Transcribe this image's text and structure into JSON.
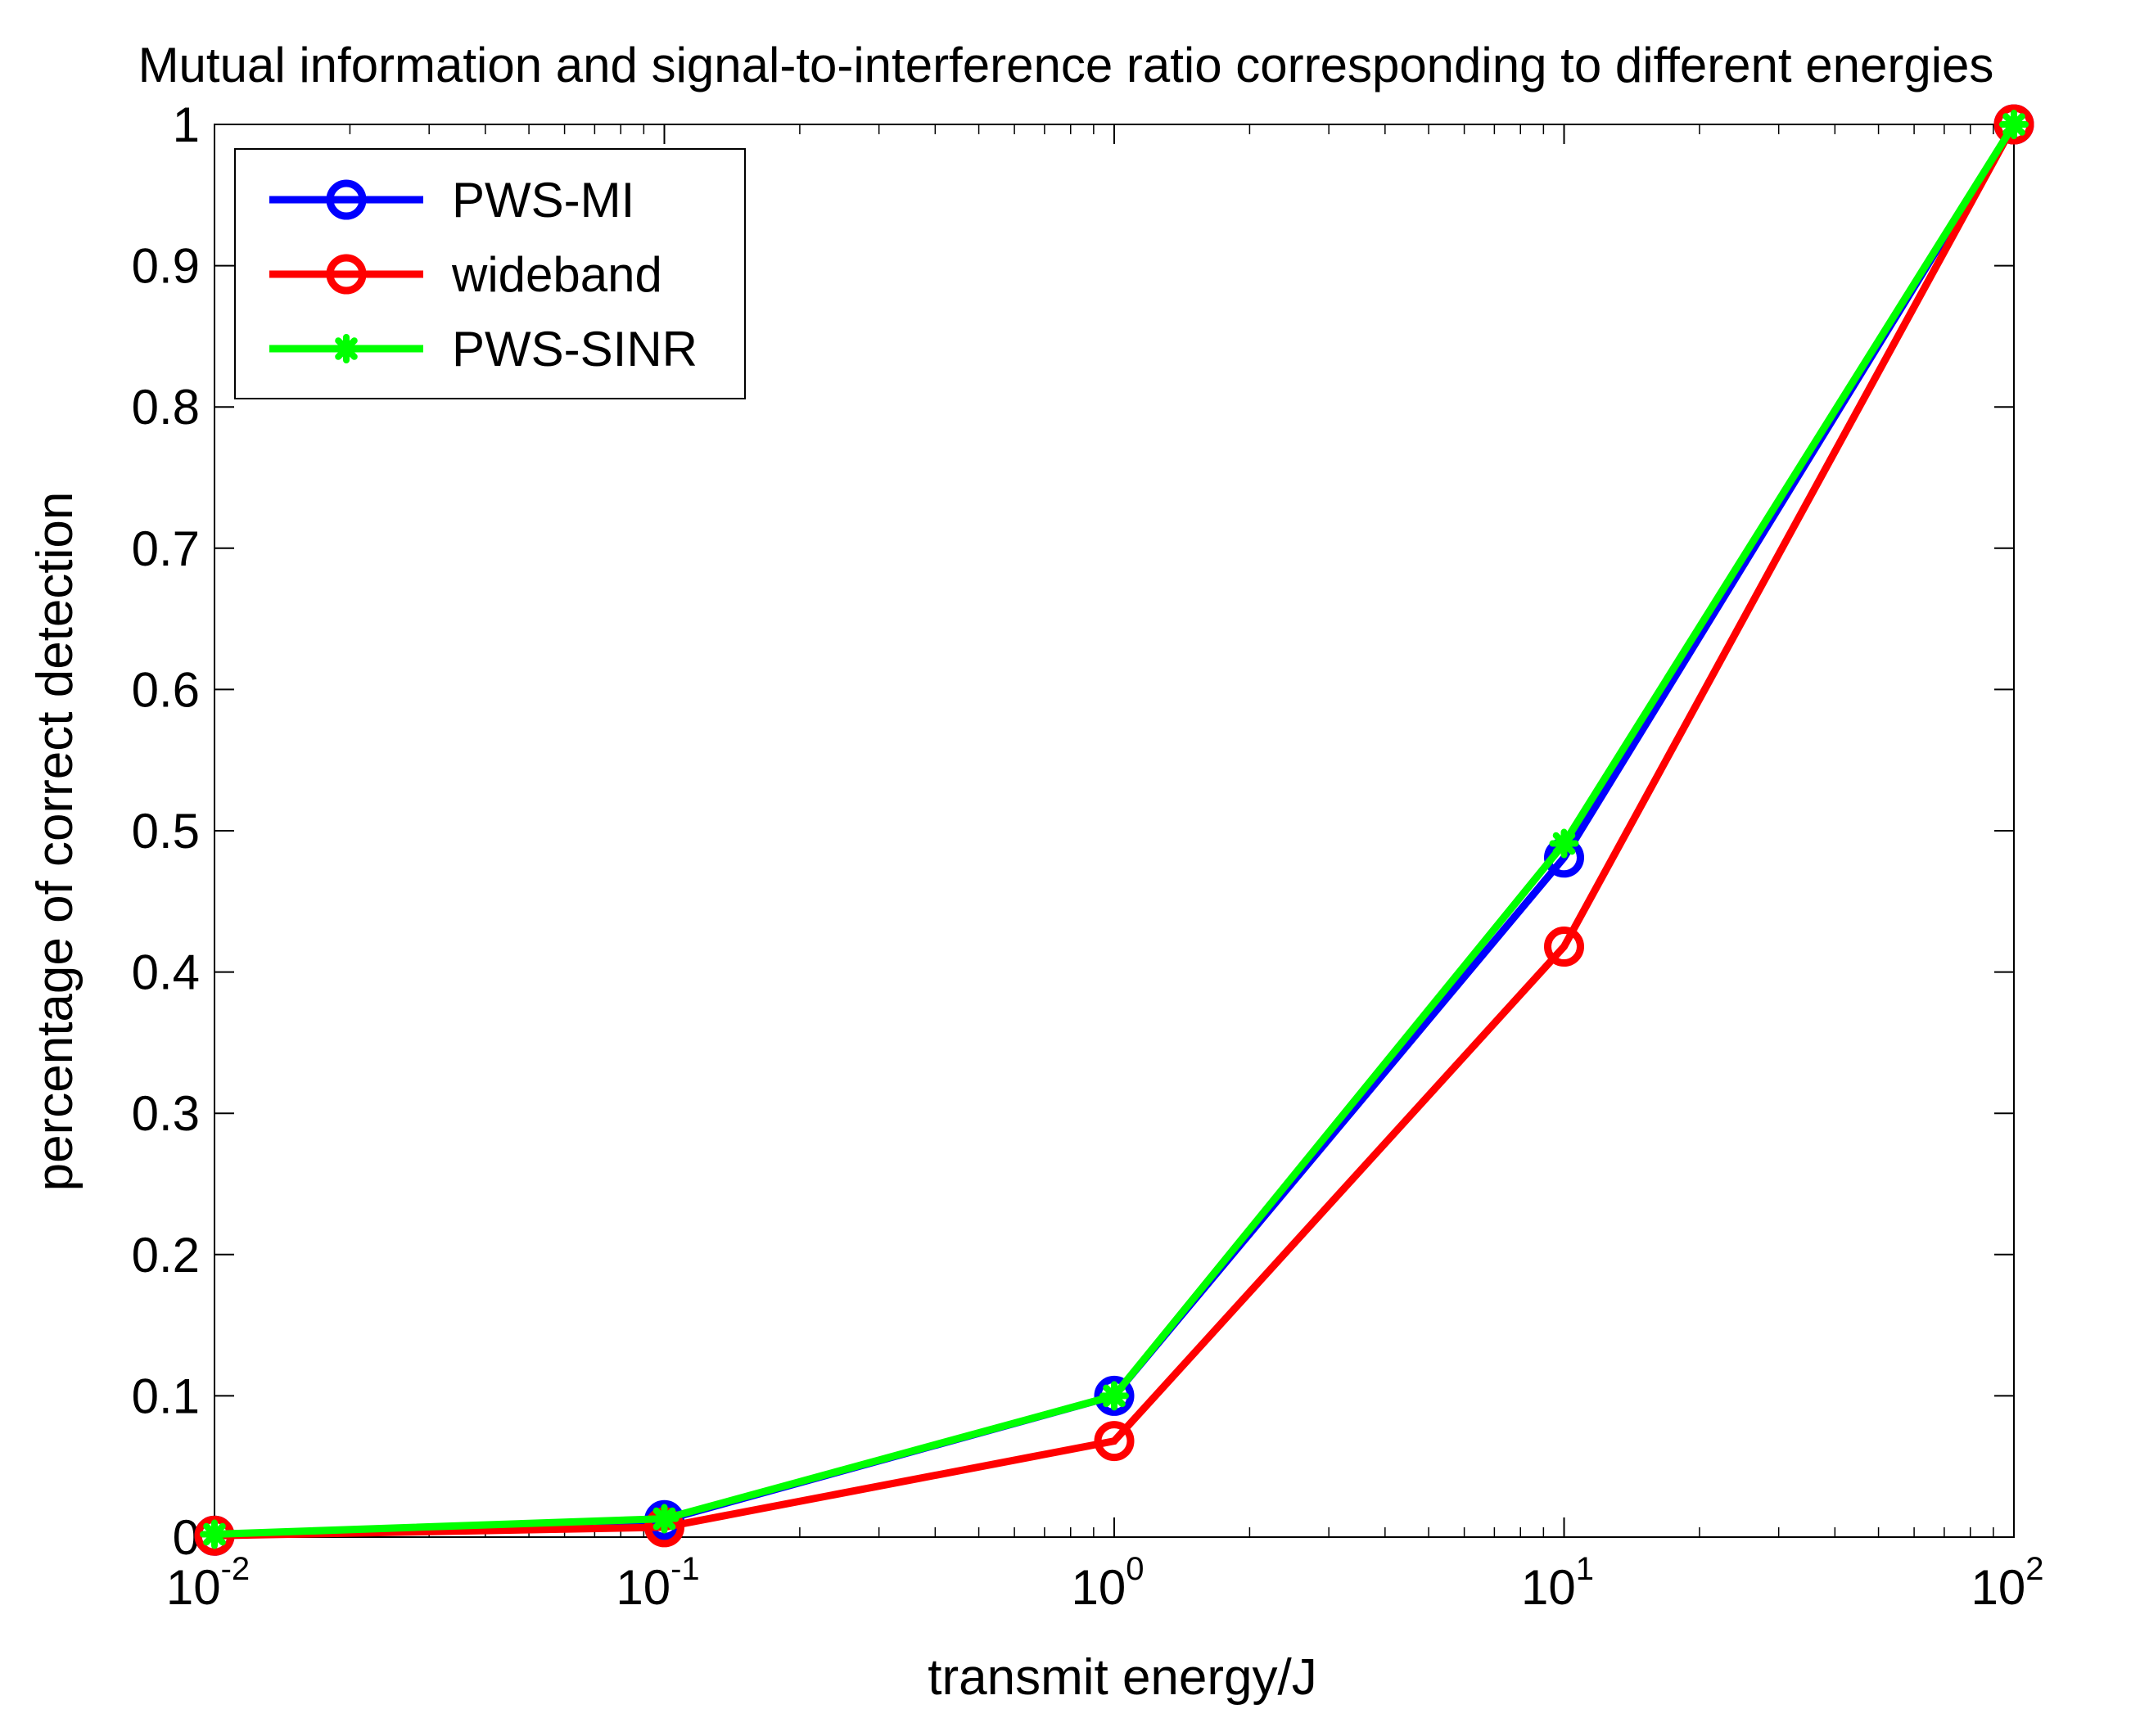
{
  "chart_data": {
    "type": "line",
    "title": "Mutual information and signal-to-interference ratio corresponding to different energies",
    "xlabel": "transmit energy/J",
    "ylabel": "percentage of correct detection",
    "xscale": "log",
    "xlim": [
      0.01,
      100
    ],
    "ylim": [
      0,
      1
    ],
    "grid": false,
    "legend_position": "top-left",
    "x": [
      0.01,
      0.1,
      1,
      10,
      100
    ],
    "x_ticks": [
      {
        "base": "10",
        "exp": "-2",
        "value": 0.01
      },
      {
        "base": "10",
        "exp": "-1",
        "value": 0.1
      },
      {
        "base": "10",
        "exp": "0",
        "value": 1
      },
      {
        "base": "10",
        "exp": "1",
        "value": 10
      },
      {
        "base": "10",
        "exp": "2",
        "value": 100
      }
    ],
    "y_ticks": [
      {
        "label": "0",
        "value": 0
      },
      {
        "label": "0.1",
        "value": 0.1
      },
      {
        "label": "0.2",
        "value": 0.2
      },
      {
        "label": "0.3",
        "value": 0.3
      },
      {
        "label": "0.4",
        "value": 0.4
      },
      {
        "label": "0.5",
        "value": 0.5
      },
      {
        "label": "0.6",
        "value": 0.6
      },
      {
        "label": "0.7",
        "value": 0.7
      },
      {
        "label": "0.8",
        "value": 0.8
      },
      {
        "label": "0.9",
        "value": 0.9
      },
      {
        "label": "1",
        "value": 1
      }
    ],
    "series": [
      {
        "name": "PWS-MI",
        "color": "#0000ff",
        "marker": "circle",
        "values": [
          0.001,
          0.012,
          0.1,
          0.481,
          1.0
        ]
      },
      {
        "name": "wideband",
        "color": "#ff0000",
        "marker": "circle",
        "values": [
          0.001,
          0.007,
          0.068,
          0.418,
          1.0
        ]
      },
      {
        "name": "PWS-SINR",
        "color": "#00ff00",
        "marker": "star",
        "values": [
          0.002,
          0.013,
          0.1,
          0.491,
          1.0
        ]
      }
    ]
  }
}
